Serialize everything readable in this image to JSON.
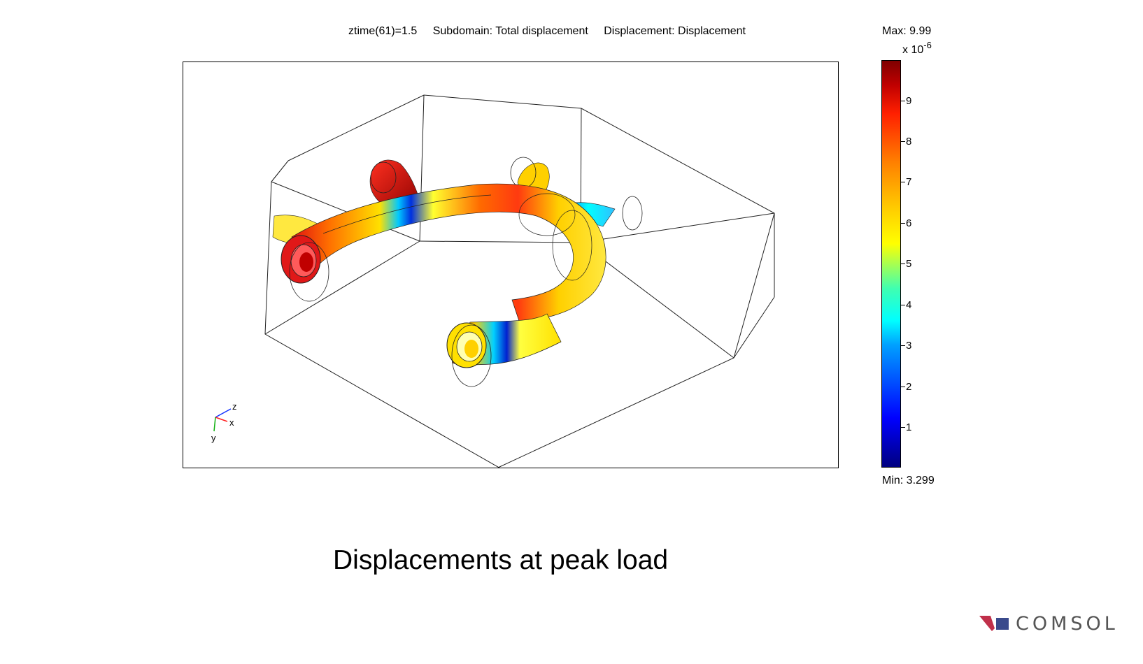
{
  "header": {
    "time": "ztime(61)=1.5",
    "subdomain": "Subdomain: Total displacement",
    "displacement": "Displacement: Displacement"
  },
  "colorbar": {
    "max_label": "Max: 9.99",
    "scale_prefix": "x 10",
    "scale_exponent": "-6",
    "min_label": "Min: 3.299",
    "ticks": [
      "9",
      "8",
      "7",
      "6",
      "5",
      "4",
      "3",
      "2",
      "1"
    ],
    "colormap": "jet"
  },
  "axes": {
    "x": "x",
    "y": "y",
    "z": "z"
  },
  "caption": "Displacements at peak load",
  "logo": {
    "text": "COMSOL",
    "colors": [
      "#c0304a",
      "#3a4a8c"
    ]
  }
}
